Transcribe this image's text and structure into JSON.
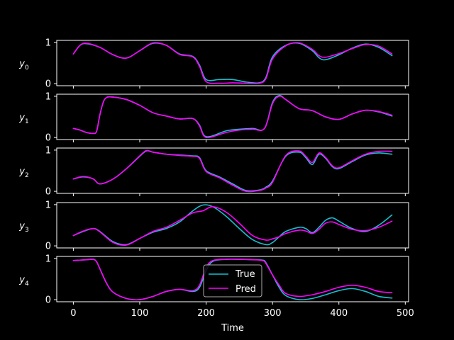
{
  "chart_data": {
    "type": "line",
    "xlabel": "Time",
    "xlim": [
      -25,
      505
    ],
    "xticks": [
      0,
      100,
      200,
      300,
      400,
      500
    ],
    "legend": {
      "placement": "lower-center",
      "entries": [
        "True",
        "Pred"
      ]
    },
    "colors": {
      "True": "#17becf",
      "Pred": "#ff00ff",
      "background": "#000000",
      "axes": "#ffffff"
    },
    "panels": [
      {
        "ylabel": {
          "base": "y",
          "sub": "0"
        },
        "ylim": [
          -0.05,
          1.05
        ],
        "yticks": [
          0,
          1
        ],
        "series": [
          {
            "name": "True",
            "x": [
              0,
              10,
              20,
              40,
              60,
              80,
              100,
              120,
              140,
              160,
              180,
              190,
              200,
              220,
              240,
              260,
              280,
              290,
              300,
              320,
              340,
              360,
              370,
              380,
              400,
              420,
              440,
              460,
              480
            ],
            "y": [
              0.72,
              0.93,
              0.97,
              0.88,
              0.7,
              0.62,
              0.8,
              0.98,
              0.93,
              0.72,
              0.66,
              0.45,
              0.1,
              0.1,
              0.1,
              0.04,
              0.02,
              0.15,
              0.65,
              0.93,
              0.98,
              0.8,
              0.63,
              0.58,
              0.7,
              0.86,
              0.96,
              0.88,
              0.68
            ]
          },
          {
            "name": "Pred",
            "x": [
              0,
              10,
              20,
              40,
              60,
              80,
              100,
              120,
              140,
              160,
              180,
              190,
              200,
              220,
              240,
              260,
              280,
              290,
              300,
              320,
              340,
              360,
              370,
              380,
              400,
              420,
              440,
              460,
              480
            ],
            "y": [
              0.72,
              0.93,
              0.98,
              0.88,
              0.7,
              0.62,
              0.8,
              0.99,
              0.93,
              0.71,
              0.65,
              0.42,
              0.05,
              0.01,
              0.02,
              0.01,
              0.01,
              0.12,
              0.6,
              0.92,
              0.99,
              0.83,
              0.68,
              0.64,
              0.73,
              0.85,
              0.95,
              0.91,
              0.72
            ]
          }
        ]
      },
      {
        "ylabel": {
          "base": "y",
          "sub": "1"
        },
        "ylim": [
          -0.05,
          1.05
        ],
        "yticks": [
          0,
          1
        ],
        "series": [
          {
            "name": "True",
            "x": [
              0,
              10,
              20,
              30,
              35,
              40,
              45,
              50,
              60,
              80,
              100,
              120,
              140,
              160,
              180,
              190,
              195,
              200,
              210,
              230,
              250,
              270,
              288,
              300,
              310,
              320,
              340,
              360,
              380,
              400,
              420,
              440,
              460,
              480
            ],
            "y": [
              0.22,
              0.18,
              0.12,
              0.1,
              0.15,
              0.55,
              0.85,
              0.97,
              0.98,
              0.92,
              0.78,
              0.6,
              0.52,
              0.45,
              0.46,
              0.3,
              0.1,
              0.02,
              0.04,
              0.16,
              0.2,
              0.22,
              0.22,
              0.85,
              1.02,
              0.92,
              0.7,
              0.65,
              0.5,
              0.44,
              0.57,
              0.66,
              0.62,
              0.52
            ]
          },
          {
            "name": "Pred",
            "x": [
              0,
              10,
              20,
              30,
              35,
              40,
              45,
              50,
              60,
              80,
              100,
              120,
              140,
              160,
              180,
              190,
              195,
              200,
              210,
              230,
              250,
              270,
              288,
              300,
              310,
              320,
              340,
              360,
              380,
              400,
              420,
              440,
              460,
              480
            ],
            "y": [
              0.22,
              0.18,
              0.12,
              0.1,
              0.15,
              0.55,
              0.85,
              0.97,
              0.98,
              0.92,
              0.78,
              0.6,
              0.52,
              0.45,
              0.46,
              0.28,
              0.08,
              0.0,
              0.02,
              0.12,
              0.18,
              0.2,
              0.22,
              0.82,
              1.0,
              0.92,
              0.7,
              0.65,
              0.5,
              0.44,
              0.57,
              0.66,
              0.63,
              0.54
            ]
          }
        ]
      },
      {
        "ylabel": {
          "base": "y",
          "sub": "2"
        },
        "ylim": [
          -0.05,
          1.05
        ],
        "yticks": [
          0,
          1
        ],
        "series": [
          {
            "name": "True",
            "x": [
              0,
              15,
              30,
              40,
              60,
              80,
              100,
              110,
              120,
              140,
              160,
              180,
              190,
              200,
              220,
              240,
              260,
              280,
              290,
              300,
              320,
              340,
              350,
              360,
              370,
              380,
              390,
              400,
              420,
              440,
              460,
              480
            ],
            "y": [
              0.3,
              0.35,
              0.3,
              0.18,
              0.3,
              0.55,
              0.85,
              0.98,
              0.95,
              0.9,
              0.88,
              0.86,
              0.82,
              0.5,
              0.35,
              0.18,
              0.02,
              0.03,
              0.1,
              0.25,
              0.85,
              0.95,
              0.82,
              0.65,
              0.9,
              0.8,
              0.6,
              0.55,
              0.72,
              0.88,
              0.93,
              0.9
            ]
          },
          {
            "name": "Pred",
            "x": [
              0,
              15,
              30,
              40,
              60,
              80,
              100,
              110,
              120,
              140,
              160,
              180,
              190,
              200,
              220,
              240,
              260,
              280,
              290,
              300,
              320,
              340,
              350,
              360,
              370,
              380,
              390,
              400,
              420,
              440,
              460,
              480
            ],
            "y": [
              0.3,
              0.36,
              0.3,
              0.18,
              0.3,
              0.55,
              0.86,
              0.99,
              0.95,
              0.9,
              0.87,
              0.85,
              0.8,
              0.48,
              0.33,
              0.15,
              0.0,
              0.02,
              0.08,
              0.22,
              0.87,
              0.98,
              0.85,
              0.7,
              0.93,
              0.82,
              0.62,
              0.57,
              0.74,
              0.9,
              0.97,
              0.97
            ]
          }
        ]
      },
      {
        "ylabel": {
          "base": "y",
          "sub": "3"
        },
        "ylim": [
          -0.05,
          1.05
        ],
        "yticks": [
          0,
          1
        ],
        "series": [
          {
            "name": "True",
            "x": [
              0,
              15,
              30,
              40,
              60,
              80,
              100,
              120,
              140,
              160,
              180,
              195,
              210,
              230,
              250,
              270,
              290,
              300,
              310,
              320,
              340,
              350,
              360,
              370,
              380,
              390,
              400,
              420,
              440,
              460,
              480
            ],
            "y": [
              0.25,
              0.35,
              0.42,
              0.35,
              0.1,
              0.03,
              0.18,
              0.33,
              0.42,
              0.58,
              0.85,
              0.99,
              0.95,
              0.72,
              0.42,
              0.15,
              0.03,
              0.08,
              0.22,
              0.35,
              0.45,
              0.42,
              0.32,
              0.45,
              0.62,
              0.68,
              0.6,
              0.42,
              0.35,
              0.5,
              0.75
            ]
          },
          {
            "name": "Pred",
            "x": [
              0,
              15,
              30,
              40,
              60,
              80,
              100,
              120,
              140,
              160,
              180,
              195,
              210,
              230,
              250,
              270,
              290,
              300,
              310,
              320,
              340,
              350,
              360,
              370,
              380,
              390,
              400,
              420,
              440,
              460,
              480
            ],
            "y": [
              0.25,
              0.36,
              0.42,
              0.34,
              0.08,
              0.02,
              0.18,
              0.35,
              0.45,
              0.62,
              0.8,
              0.85,
              0.95,
              0.82,
              0.55,
              0.25,
              0.14,
              0.17,
              0.22,
              0.3,
              0.38,
              0.36,
              0.3,
              0.4,
              0.55,
              0.58,
              0.52,
              0.4,
              0.37,
              0.45,
              0.6
            ]
          }
        ]
      },
      {
        "ylabel": {
          "base": "y",
          "sub": "4"
        },
        "ylim": [
          -0.05,
          1.05
        ],
        "yticks": [
          0,
          1
        ],
        "series": [
          {
            "name": "True",
            "x": [
              0,
              10,
              20,
              30,
              35,
              40,
              50,
              60,
              80,
              100,
              120,
              140,
              160,
              180,
              190,
              200,
              210,
              230,
              250,
              270,
              285,
              290,
              300,
              310,
              320,
              340,
              360,
              380,
              400,
              420,
              440,
              460,
              480
            ],
            "y": [
              0.95,
              0.96,
              0.97,
              0.98,
              0.92,
              0.75,
              0.4,
              0.18,
              0.03,
              0.0,
              0.08,
              0.2,
              0.25,
              0.2,
              0.3,
              0.7,
              0.93,
              0.98,
              0.98,
              0.97,
              0.96,
              0.9,
              0.6,
              0.3,
              0.1,
              0.0,
              0.03,
              0.12,
              0.22,
              0.27,
              0.2,
              0.08,
              0.04
            ]
          },
          {
            "name": "Pred",
            "x": [
              0,
              10,
              20,
              30,
              35,
              40,
              50,
              60,
              80,
              100,
              120,
              140,
              160,
              180,
              190,
              200,
              210,
              230,
              250,
              270,
              285,
              290,
              300,
              310,
              320,
              340,
              360,
              380,
              400,
              420,
              440,
              460,
              480
            ],
            "y": [
              0.95,
              0.96,
              0.97,
              0.98,
              0.92,
              0.75,
              0.4,
              0.18,
              0.03,
              0.0,
              0.08,
              0.2,
              0.25,
              0.22,
              0.35,
              0.78,
              0.95,
              0.98,
              0.98,
              0.97,
              0.95,
              0.88,
              0.6,
              0.35,
              0.15,
              0.08,
              0.12,
              0.2,
              0.3,
              0.35,
              0.3,
              0.2,
              0.17
            ]
          }
        ]
      }
    ]
  }
}
